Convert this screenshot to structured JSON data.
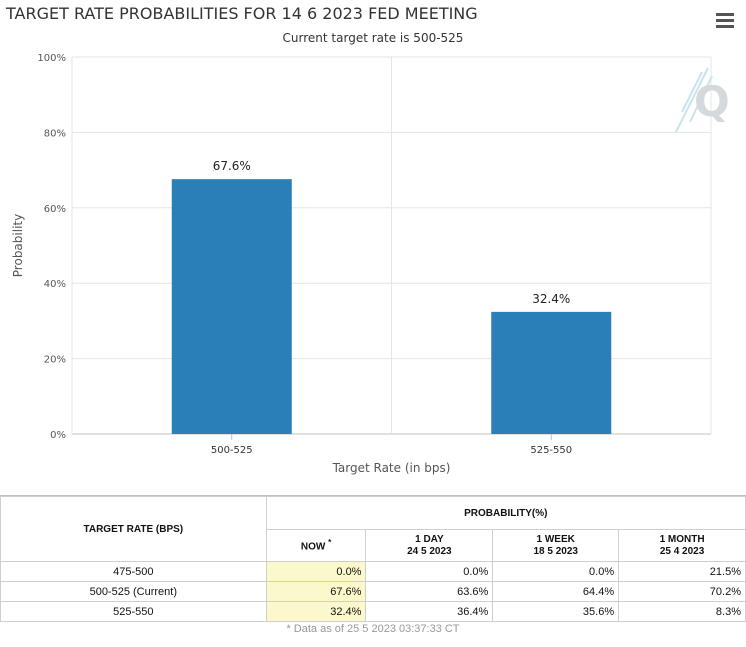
{
  "title": "TARGET RATE PROBABILITIES FOR 14 6 2023 FED MEETING",
  "subtitle": "Current target rate is 500-525",
  "chart_data": {
    "type": "bar",
    "title": "TARGET RATE PROBABILITIES FOR 14 6 2023 FED MEETING",
    "subtitle": "Current target rate is 500-525",
    "categories": [
      "500-525",
      "525-550"
    ],
    "values": [
      67.6,
      32.4
    ],
    "data_labels": [
      "67.6%",
      "32.4%"
    ],
    "xlabel": "Target Rate (in bps)",
    "ylabel": "Probability",
    "ylim": [
      0,
      100
    ],
    "yticks": [
      0,
      20,
      40,
      60,
      80,
      100
    ],
    "ytick_labels": [
      "0%",
      "20%",
      "40%",
      "60%",
      "80%",
      "100%"
    ],
    "grid": true,
    "bar_color": "#2a7fb8"
  },
  "table": {
    "col_rate_header": "TARGET RATE (BPS)",
    "prob_header": "PROBABILITY(%)",
    "now_label": "NOW",
    "now_marker": "*",
    "day_label": "1 DAY",
    "day_date": "24 5 2023",
    "week_label": "1 WEEK",
    "week_date": "18 5 2023",
    "month_label": "1 MONTH",
    "month_date": "25 4 2023",
    "rows": [
      {
        "rate": "475-500",
        "now": "0.0%",
        "day": "0.0%",
        "week": "0.0%",
        "month": "21.5%"
      },
      {
        "rate": "500-525 (Current)",
        "now": "67.6%",
        "day": "63.6%",
        "week": "64.4%",
        "month": "70.2%"
      },
      {
        "rate": "525-550",
        "now": "32.4%",
        "day": "36.4%",
        "week": "35.6%",
        "month": "8.3%"
      }
    ],
    "footnote": "* Data as of 25 5 2023 03:37:33 CT"
  },
  "colors": {
    "bar": "#2a7fb8",
    "now_cell": "#fbf9cc",
    "grid": "#e6e6e6"
  },
  "icons": {
    "menu": "hamburger-menu-icon",
    "logo": "q-logo-icon"
  }
}
